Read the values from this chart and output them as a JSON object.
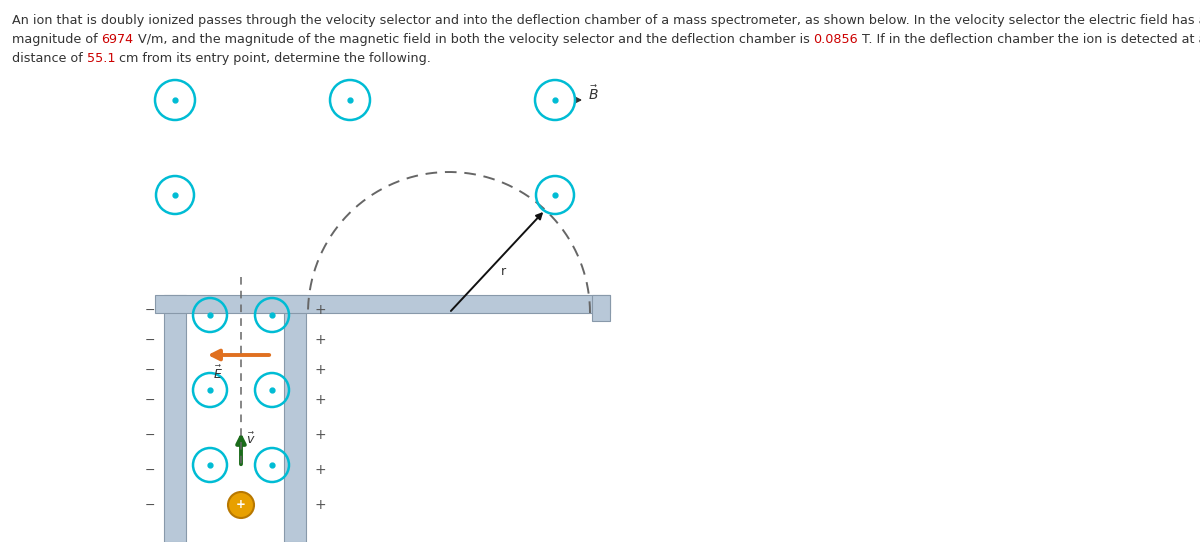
{
  "bg_color": "#ffffff",
  "cyan_color": "#00bcd4",
  "orange_color": "#e07020",
  "green_color": "#1a6b1a",
  "gray_wall": "#b8c8d8",
  "gray_wall_dark": "#8899aa",
  "plus_color": "#e8a000",
  "minus_color": "#555555",
  "text_color": "#333333",
  "red_text_color": "#cc0000",
  "dashed_color": "#666666",
  "line1": "An ion that is doubly ionized passes through the velocity selector and into the deflection chamber of a mass spectrometer, as shown below. In the velocity selector the electric field has a",
  "line2_p1": "magnitude of ",
  "line2_v1": "6974",
  "line2_p2": " V/m, and the magnitude of the magnetic field in both the velocity selector and the deflection chamber is ",
  "line2_v2": "0.0856",
  "line2_p3": " T. If in the deflection chamber the ion is detected at a",
  "line3_p1": "distance of ",
  "line3_v1": "55.1",
  "line3_p2": " cm from its entry point, determine the following.",
  "fontsize": 9.2
}
